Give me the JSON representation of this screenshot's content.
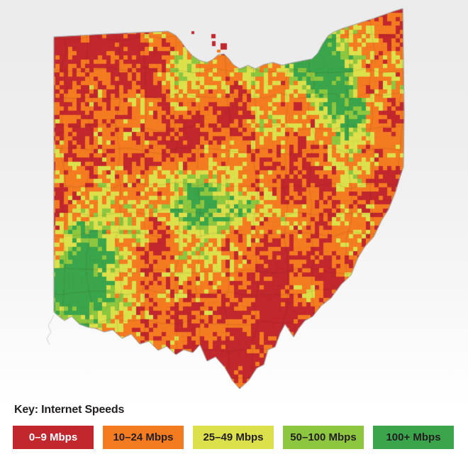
{
  "map": {
    "region": "Ohio",
    "type": "choropleth",
    "subject": "internet-speeds-by-census-tract",
    "outline_color": "#9c9c9c",
    "county_line_color": "rgba(84,30,22,0.16)"
  },
  "legend": {
    "title": "Key: Internet Speeds",
    "items": [
      {
        "label": "0–9 Mbps",
        "color": "#c1272d",
        "text_color": "#ffffff"
      },
      {
        "label": "10–24 Mbps",
        "color": "#f47b20",
        "text_color": "#231f20"
      },
      {
        "label": "25–49 Mbps",
        "color": "#dce04b",
        "text_color": "#231f20"
      },
      {
        "label": "50–100 Mbps",
        "color": "#8dc63f",
        "text_color": "#231f20"
      },
      {
        "label": "100+ Mbps",
        "color": "#3aa54a",
        "text_color": "#231f20"
      }
    ]
  }
}
